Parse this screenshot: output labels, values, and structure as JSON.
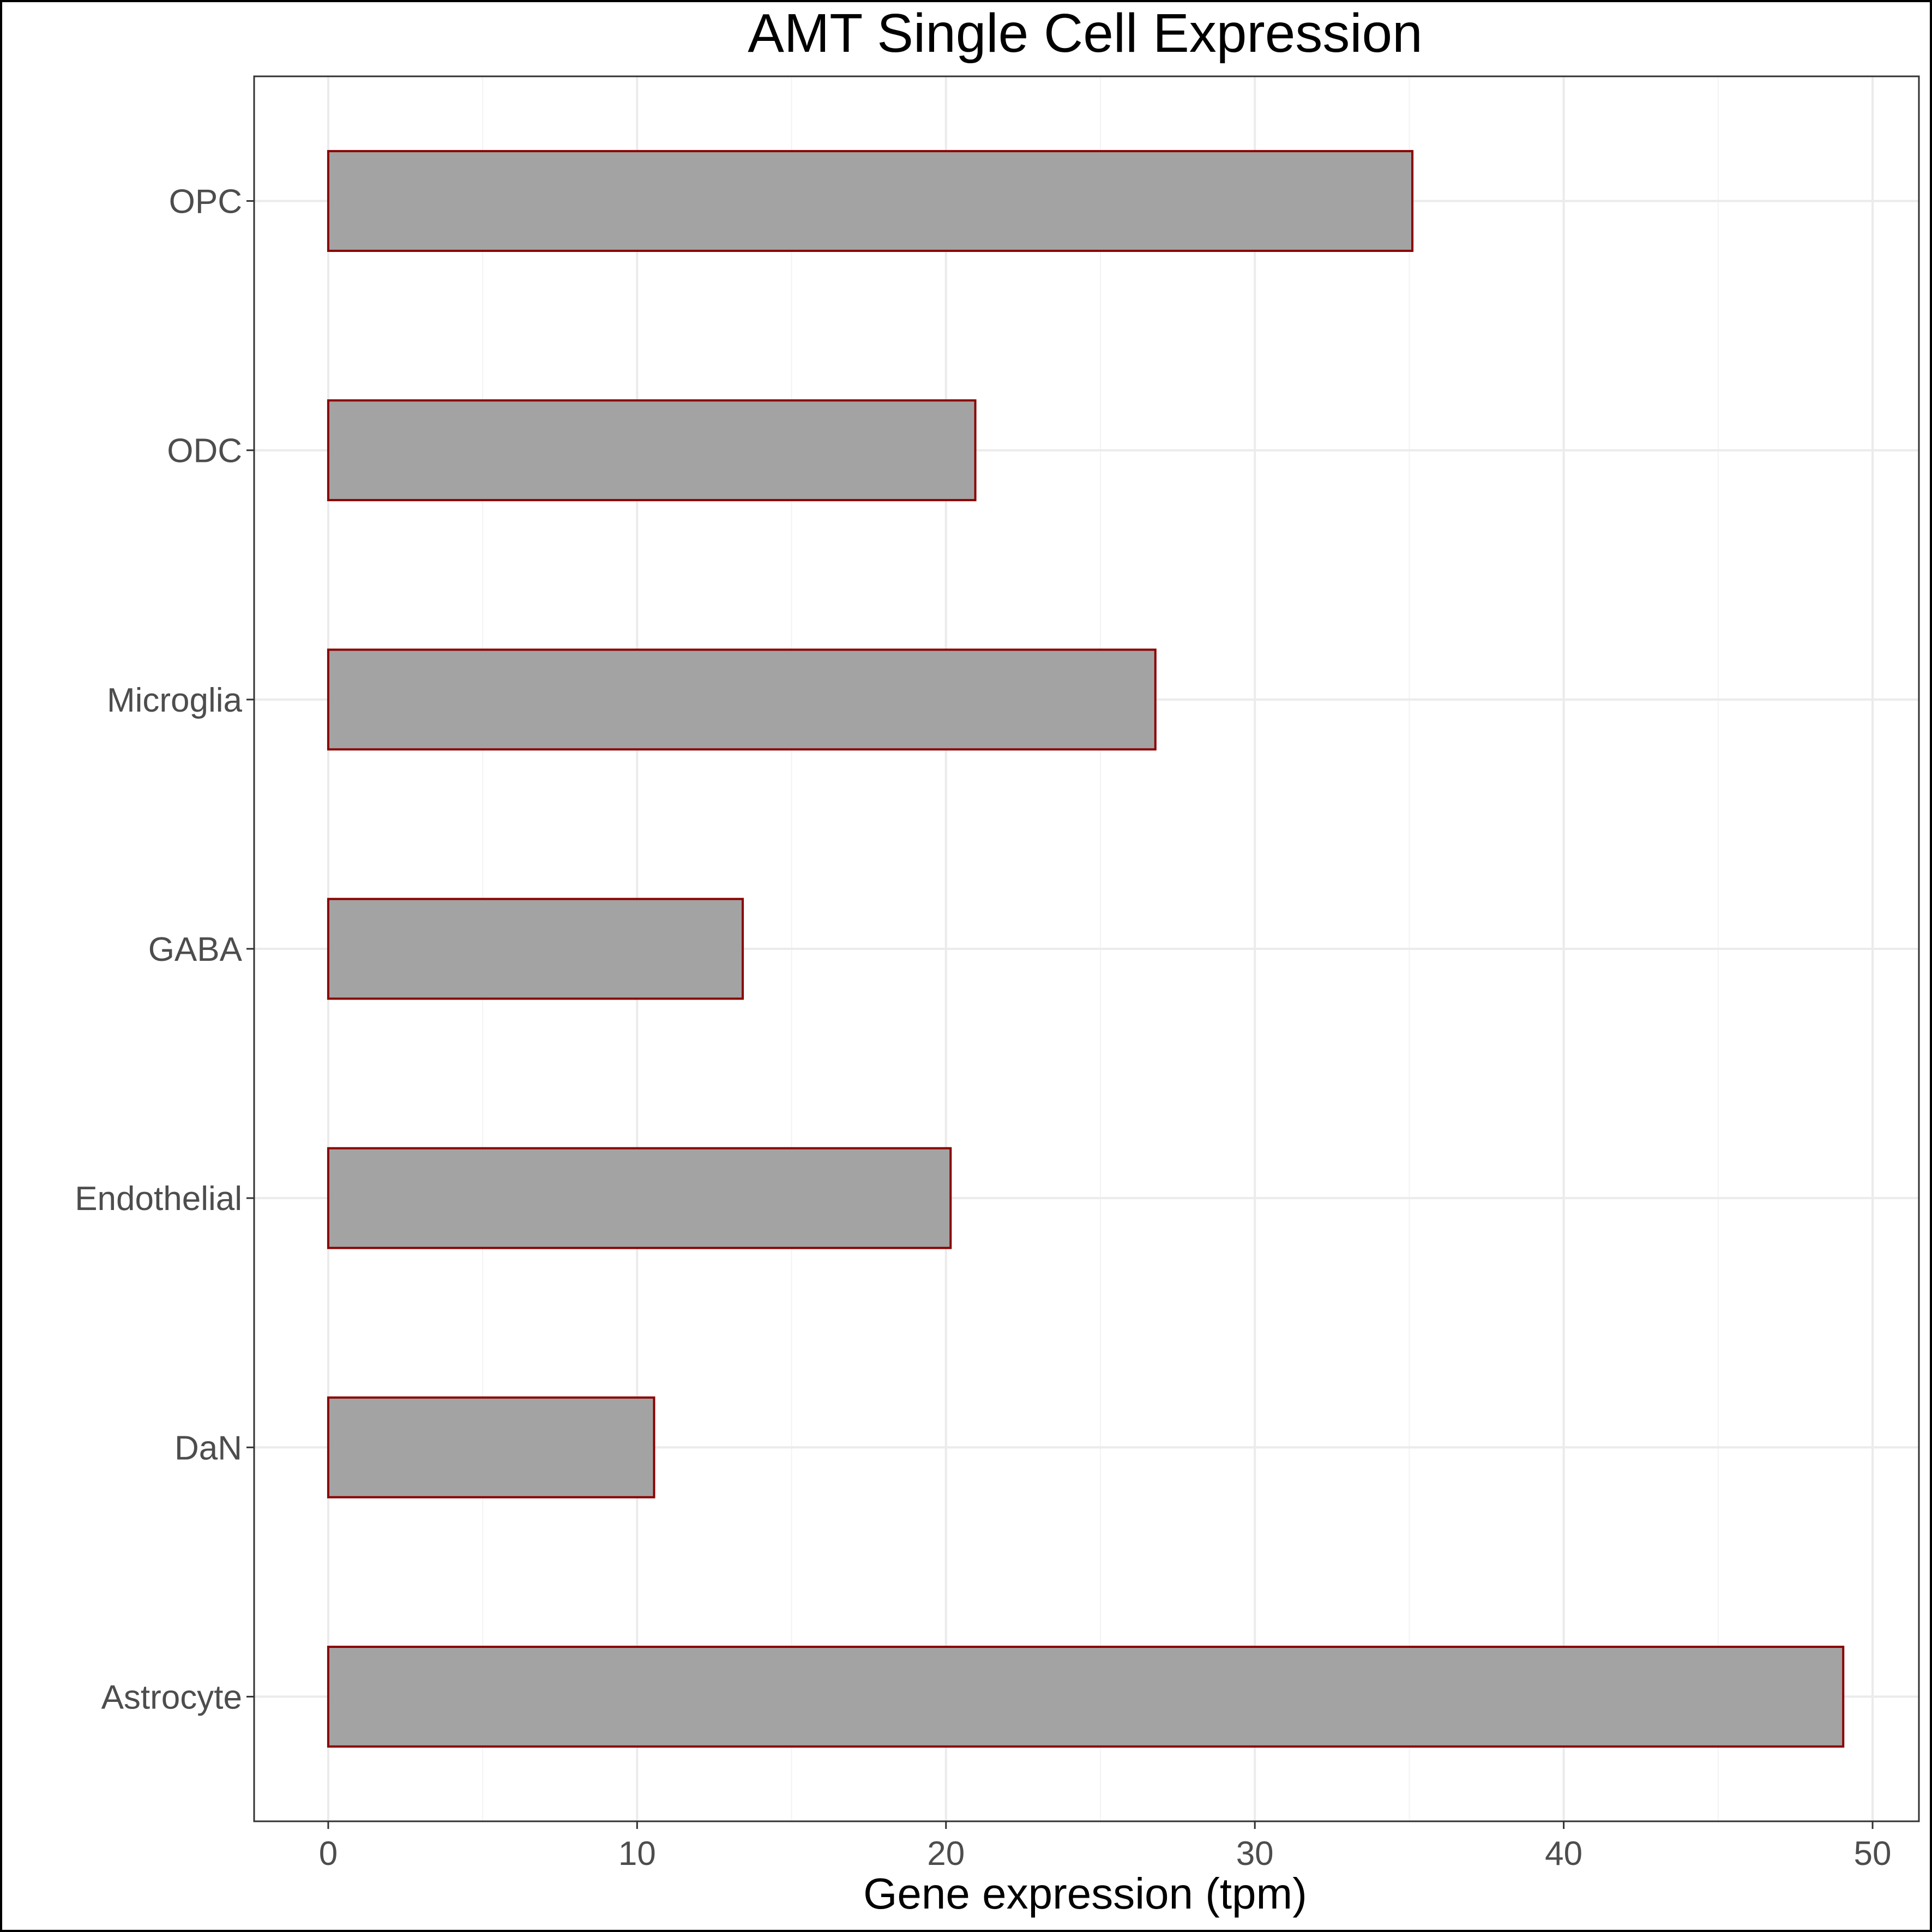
{
  "chart_data": {
    "type": "bar",
    "orientation": "horizontal",
    "title": "AMT Single Cell Expression",
    "xlabel": "Gene expression (tpm)",
    "ylabel": "",
    "categories": [
      "Astrocyte",
      "DaN",
      "Endothelial",
      "GABA",
      "Microglia",
      "ODC",
      "OPC"
    ],
    "values": [
      49.05,
      10.55,
      20.15,
      13.42,
      26.78,
      20.95,
      35.1
    ],
    "xlim": [
      -2.4,
      51.5
    ],
    "xticks": [
      0,
      10,
      20,
      30,
      40,
      50
    ],
    "xtick_labels": [
      "0",
      "10",
      "20",
      "30",
      "40",
      "50"
    ],
    "grid": true,
    "legend": "none",
    "bar_fill": "#a3a3a3",
    "bar_outline": "#8b0000",
    "grid_color": "#ebebeb"
  }
}
